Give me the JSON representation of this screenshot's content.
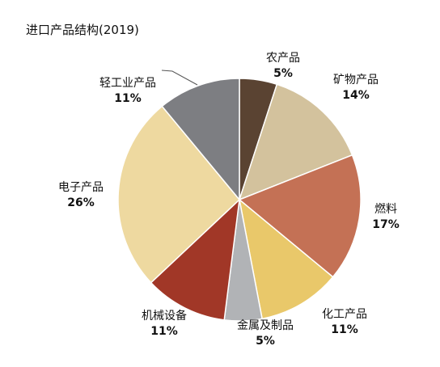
{
  "chart_data": {
    "type": "pie",
    "title": "进口产品结构(2019)",
    "categories": [
      "农产品",
      "矿物产品",
      "燃料",
      "化工产品",
      "金属及制品",
      "机械设备",
      "电子产品",
      "轻工业产品"
    ],
    "values": [
      5,
      14,
      17,
      11,
      5,
      11,
      26,
      11
    ],
    "value_labels": [
      "5%",
      "14%",
      "17%",
      "11%",
      "5%",
      "11%",
      "26%",
      "11%"
    ],
    "colors": [
      "#5a4332",
      "#d3c29d",
      "#c47155",
      "#e9c86a",
      "#b1b3b6",
      "#a13727",
      "#eed9a0",
      "#7d7e82"
    ],
    "start_angle": "12 o'clock",
    "direction": "clockwise"
  }
}
